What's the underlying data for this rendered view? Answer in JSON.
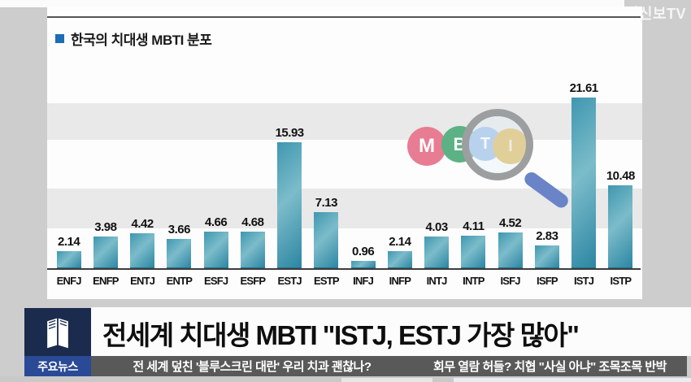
{
  "broadcast": {
    "station_logo": "치의신보TV"
  },
  "chart": {
    "title": "한국의 치대생 MBTI 분포"
  },
  "chart_data": {
    "type": "bar",
    "title": "한국의 치대생 MBTI 분포",
    "categories": [
      "ENFJ",
      "ENFP",
      "ENTJ",
      "ENTP",
      "ESFJ",
      "ESFP",
      "ESTJ",
      "ESTP",
      "INFJ",
      "INFP",
      "INTJ",
      "INTP",
      "ISFJ",
      "ISFP",
      "ISTJ",
      "ISTP"
    ],
    "values": [
      2.14,
      3.98,
      4.42,
      3.66,
      4.66,
      4.68,
      15.93,
      7.13,
      0.96,
      2.14,
      4.03,
      4.11,
      4.52,
      2.83,
      21.61,
      10.48
    ],
    "xlabel": "",
    "ylabel": "",
    "ylim": [
      0,
      25
    ],
    "grid": "horizontal-bands",
    "legend": "none",
    "value_labels": "above-bars",
    "bar_color": "#3f97b0"
  },
  "mbti_logo": {
    "letters": [
      "M",
      "B",
      "T",
      "I"
    ],
    "colors": [
      "#e87c92",
      "#5cb284",
      "#9fc0e8",
      "#e0bb62"
    ],
    "magnifier": "magnifying-glass over T and I"
  },
  "banner": {
    "badge": "주요뉴스",
    "headline": "전세계 치대생 MBTI \"ISTJ, ESTJ 가장 많아\""
  },
  "ticker": {
    "left": "전 세계 덮친 '블루스크린 대란' 우리 치과 괜찮나?",
    "right": "회무 열람 허들? 치협 \"사실 아냐\" 조목조목 반박"
  },
  "colors": {
    "background": "#cdcdcd",
    "panel": "#fdfdfd",
    "stripe": "#e9e9e9",
    "bar": "#3f97b0",
    "title_bullet": "#1e6cb5",
    "logo_navy": "#1b2b4d",
    "badge_blue": "#2a4a96",
    "ticker_gray": "#595959",
    "headline_text": "#0e0e0e"
  }
}
